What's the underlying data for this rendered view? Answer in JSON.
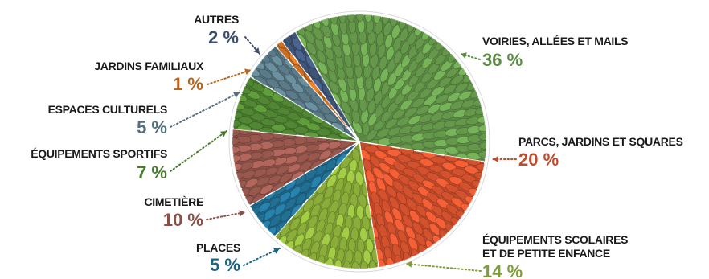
{
  "chart_data": {
    "type": "pie",
    "title": "",
    "unit": "%",
    "slices": [
      {
        "label": "VOIRIES, ALLÉES ET MAILS",
        "value": 36,
        "display": "36 %",
        "color": "#5c8a45",
        "line2": ""
      },
      {
        "label": "PARCS, JARDINS ET SQUARES",
        "value": 20,
        "display": "20 %",
        "color": "#c04a2a",
        "line2": ""
      },
      {
        "label": "ÉQUIPEMENTS SCOLAIRES",
        "value": 14,
        "display": "14 %",
        "color": "#7e9e35",
        "line2": "ET DE PETITE ENFANCE"
      },
      {
        "label": "PLACES",
        "value": 5,
        "display": "5 %",
        "color": "#1f6586",
        "line2": ""
      },
      {
        "label": "CIMETIÈRE",
        "value": 10,
        "display": "10 %",
        "color": "#8a5048",
        "line2": ""
      },
      {
        "label": "ÉQUIPEMENTS SPORTIFS",
        "value": 7,
        "display": "7 %",
        "color": "#4a7a2f",
        "line2": ""
      },
      {
        "label": "ESPACES CULTURELS",
        "value": 5,
        "display": "5 %",
        "color": "#53707c",
        "line2": ""
      },
      {
        "label": "JARDINS FAMILIAUX",
        "value": 1,
        "display": "1 %",
        "color": "#b8651f",
        "line2": ""
      },
      {
        "label": "AUTRES",
        "value": 2,
        "display": "2 %",
        "color": "#3a4e6e",
        "line2": ""
      }
    ],
    "legend": "none"
  }
}
